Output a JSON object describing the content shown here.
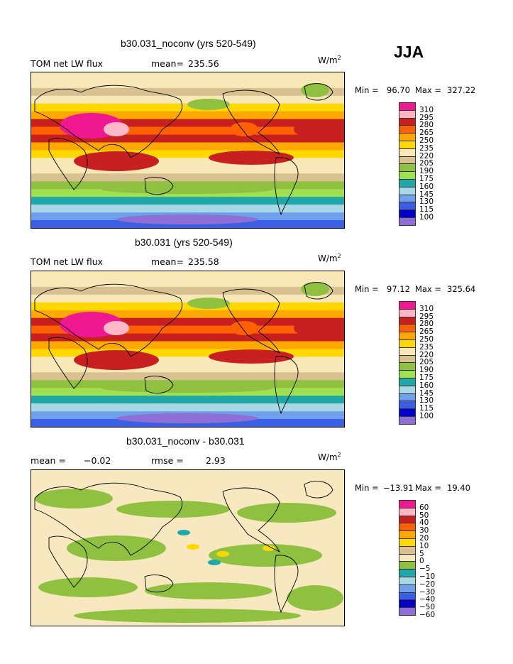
{
  "season": "JJA",
  "unit_base": "W/m",
  "unit_exp": "2",
  "palette_abs": [
    "#8e6fd6",
    "#0000c8",
    "#3a5fe6",
    "#6fa0ec",
    "#a8d8e6",
    "#20a8a8",
    "#a0e050",
    "#90c040",
    "#d8c090",
    "#f8e8b8",
    "#ffd800",
    "#ffa800",
    "#ff6000",
    "#c82020",
    "#ffb8c8",
    "#f01890"
  ],
  "palette_diff": [
    "#8e6fd6",
    "#0000c8",
    "#3a5fe6",
    "#6fa0ec",
    "#a8d8e6",
    "#20a8a8",
    "#90c040",
    "#f8e8c0",
    "#d8c090",
    "#ffd800",
    "#ffa800",
    "#ff6000",
    "#c82020",
    "#ffb8c8",
    "#f01890"
  ],
  "panels": [
    {
      "title": "b30.031_noconv (yrs 520-549)",
      "left_label": "TOM net LW flux",
      "stat_label": "mean=",
      "stat_value": "235.56",
      "min_label": "Min =",
      "min_value": "96.70",
      "max_label": "Max =",
      "max_value": "327.22"
    },
    {
      "title": "b30.031 (yrs 520-549)",
      "left_label": "TOM net LW flux",
      "stat_label": "mean=",
      "stat_value": "235.58",
      "min_label": "Min =",
      "min_value": "97.12",
      "max_label": "Max =",
      "max_value": "325.64"
    },
    {
      "title": "b30.031_noconv - b30.031",
      "left_label": "mean =",
      "left_value": "−0.02",
      "stat_label": "rmse =",
      "stat_value": "2.93",
      "min_label": "Min =",
      "min_value": "−13.91",
      "max_label": "Max =",
      "max_value": "19.40"
    }
  ],
  "chart_data": [
    {
      "type": "heatmap",
      "title": "b30.031_noconv (yrs 520-549)",
      "variable": "TOM net LW flux",
      "units": "W/m2",
      "mean": 235.56,
      "min": 96.7,
      "max": 327.22,
      "contour_levels": [
        100,
        115,
        130,
        145,
        160,
        175,
        190,
        205,
        220,
        235,
        250,
        265,
        280,
        295,
        310
      ]
    },
    {
      "type": "heatmap",
      "title": "b30.031 (yrs 520-549)",
      "variable": "TOM net LW flux",
      "units": "W/m2",
      "mean": 235.58,
      "min": 97.12,
      "max": 325.64,
      "contour_levels": [
        100,
        115,
        130,
        145,
        160,
        175,
        190,
        205,
        220,
        235,
        250,
        265,
        280,
        295,
        310
      ]
    },
    {
      "type": "heatmap",
      "title": "b30.031_noconv - b30.031",
      "units": "W/m2",
      "mean": -0.02,
      "rmse": 2.93,
      "min": -13.91,
      "max": 19.4,
      "contour_levels": [
        -60,
        -50,
        -40,
        -30,
        -20,
        -10,
        -5,
        0,
        5,
        10,
        20,
        30,
        40,
        50,
        60
      ]
    }
  ],
  "colorbar_abs_labels": [
    "310",
    "295",
    "280",
    "265",
    "250",
    "235",
    "220",
    "205",
    "190",
    "175",
    "160",
    "145",
    "130",
    "115",
    "100"
  ],
  "colorbar_diff_labels": [
    "60",
    "50",
    "40",
    "30",
    "20",
    "10",
    "5",
    "0",
    "−5",
    "−10",
    "−20",
    "−30",
    "−40",
    "−50",
    "−60"
  ]
}
